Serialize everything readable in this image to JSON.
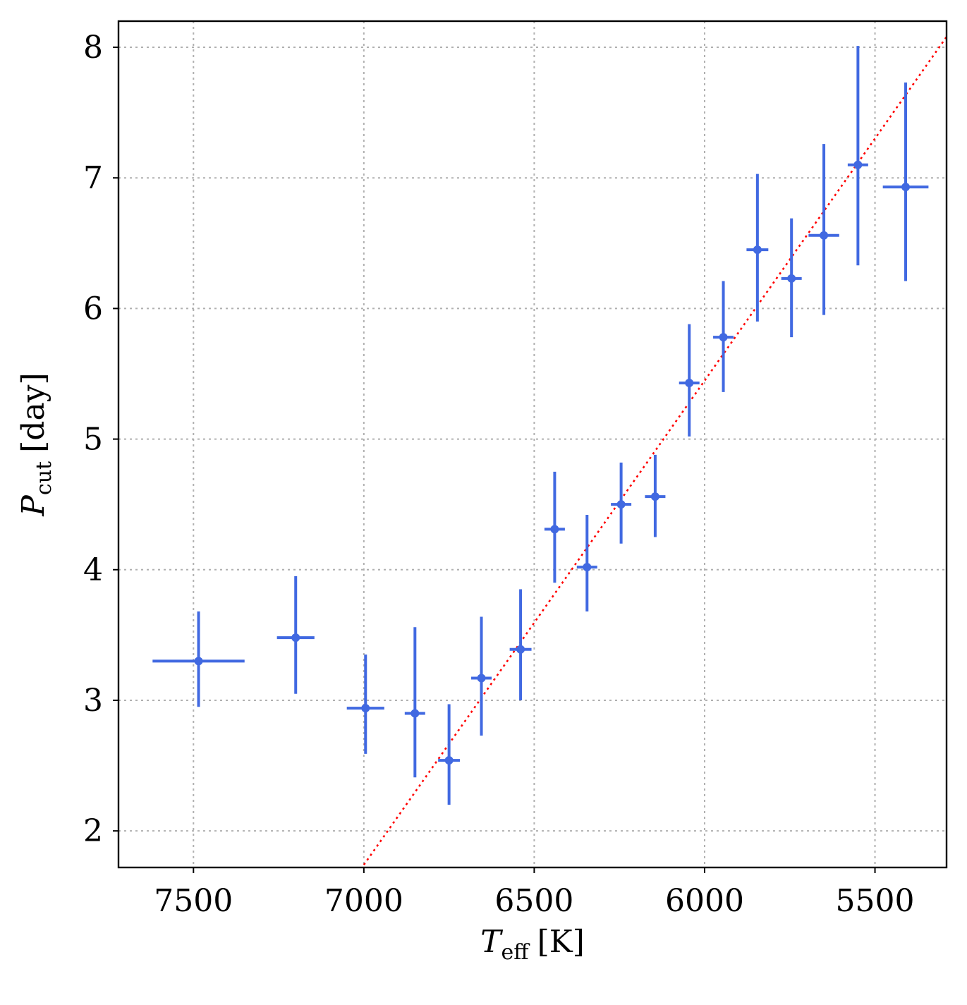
{
  "chart_data": {
    "type": "scatter",
    "title": "",
    "xlabel": {
      "main": "T",
      "sub": "eff",
      "unit": "[K]"
    },
    "ylabel": {
      "main": "P",
      "sub": "cut",
      "unit": "[day]"
    },
    "x_axis_inverted": true,
    "xlim": [
      7720,
      5290
    ],
    "ylim": [
      1.72,
      8.2
    ],
    "xticks": [
      7500,
      7000,
      6500,
      6000,
      5500
    ],
    "yticks": [
      2,
      3,
      4,
      5,
      6,
      7,
      8
    ],
    "grid": true,
    "legend": "none",
    "colors": {
      "points": "#4169e1",
      "trend": "#ff0000",
      "grid": "#b0b0b0"
    },
    "series": [
      {
        "kind": "errorbar",
        "points": [
          {
            "x": 7485,
            "y": 3.3,
            "xerr": 135,
            "yerr_lo": 0.35,
            "yerr_hi": 0.38
          },
          {
            "x": 7200,
            "y": 3.48,
            "xerr": 55,
            "yerr_lo": 0.43,
            "yerr_hi": 0.47
          },
          {
            "x": 6995,
            "y": 2.94,
            "xerr": 55,
            "yerr_lo": 0.35,
            "yerr_hi": 0.41
          },
          {
            "x": 6850,
            "y": 2.9,
            "xerr": 30,
            "yerr_lo": 0.49,
            "yerr_hi": 0.66
          },
          {
            "x": 6750,
            "y": 2.54,
            "xerr": 32,
            "yerr_lo": 0.34,
            "yerr_hi": 0.43
          },
          {
            "x": 6655,
            "y": 3.17,
            "xerr": 30,
            "yerr_lo": 0.44,
            "yerr_hi": 0.47
          },
          {
            "x": 6540,
            "y": 3.39,
            "xerr": 32,
            "yerr_lo": 0.39,
            "yerr_hi": 0.46
          },
          {
            "x": 6440,
            "y": 4.31,
            "xerr": 30,
            "yerr_lo": 0.41,
            "yerr_hi": 0.44
          },
          {
            "x": 6345,
            "y": 4.02,
            "xerr": 30,
            "yerr_lo": 0.34,
            "yerr_hi": 0.4
          },
          {
            "x": 6245,
            "y": 4.5,
            "xerr": 30,
            "yerr_lo": 0.3,
            "yerr_hi": 0.32
          },
          {
            "x": 6145,
            "y": 4.56,
            "xerr": 30,
            "yerr_lo": 0.31,
            "yerr_hi": 0.32
          },
          {
            "x": 6045,
            "y": 5.43,
            "xerr": 30,
            "yerr_lo": 0.41,
            "yerr_hi": 0.45
          },
          {
            "x": 5945,
            "y": 5.78,
            "xerr": 30,
            "yerr_lo": 0.42,
            "yerr_hi": 0.43
          },
          {
            "x": 5845,
            "y": 6.45,
            "xerr": 32,
            "yerr_lo": 0.55,
            "yerr_hi": 0.58
          },
          {
            "x": 5745,
            "y": 6.23,
            "xerr": 30,
            "yerr_lo": 0.45,
            "yerr_hi": 0.46
          },
          {
            "x": 5650,
            "y": 6.56,
            "xerr": 45,
            "yerr_lo": 0.61,
            "yerr_hi": 0.7
          },
          {
            "x": 5550,
            "y": 7.1,
            "xerr": 30,
            "yerr_lo": 0.77,
            "yerr_hi": 0.91
          },
          {
            "x": 5410,
            "y": 6.93,
            "xerr": 67,
            "yerr_lo": 0.72,
            "yerr_hi": 0.8
          }
        ]
      },
      {
        "kind": "trend-line",
        "x": [
          7000,
          5290
        ],
        "y": [
          1.74,
          8.08
        ]
      }
    ]
  }
}
